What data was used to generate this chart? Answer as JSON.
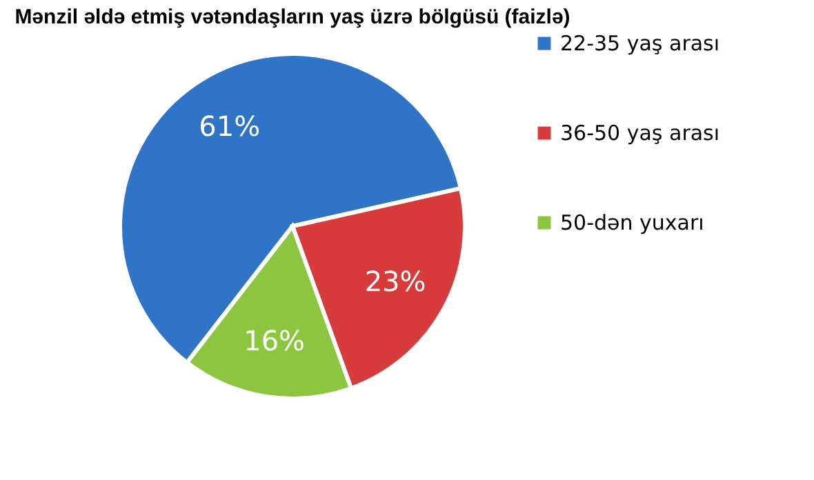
{
  "chart_data": {
    "type": "pie",
    "title": "Mənzil əldə etmiş vətəndaşların yaş üzrə bölgüsü (faizlə)",
    "categories": [
      "22-35 yaş arası",
      "36-50 yaş arası",
      "50-dən yuxarı"
    ],
    "values": [
      61,
      23,
      16
    ],
    "colors": [
      "#2f74c6",
      "#d83b3b",
      "#8cc63f"
    ],
    "value_labels": [
      "61%",
      "23%",
      "16%"
    ],
    "legend": "right"
  }
}
